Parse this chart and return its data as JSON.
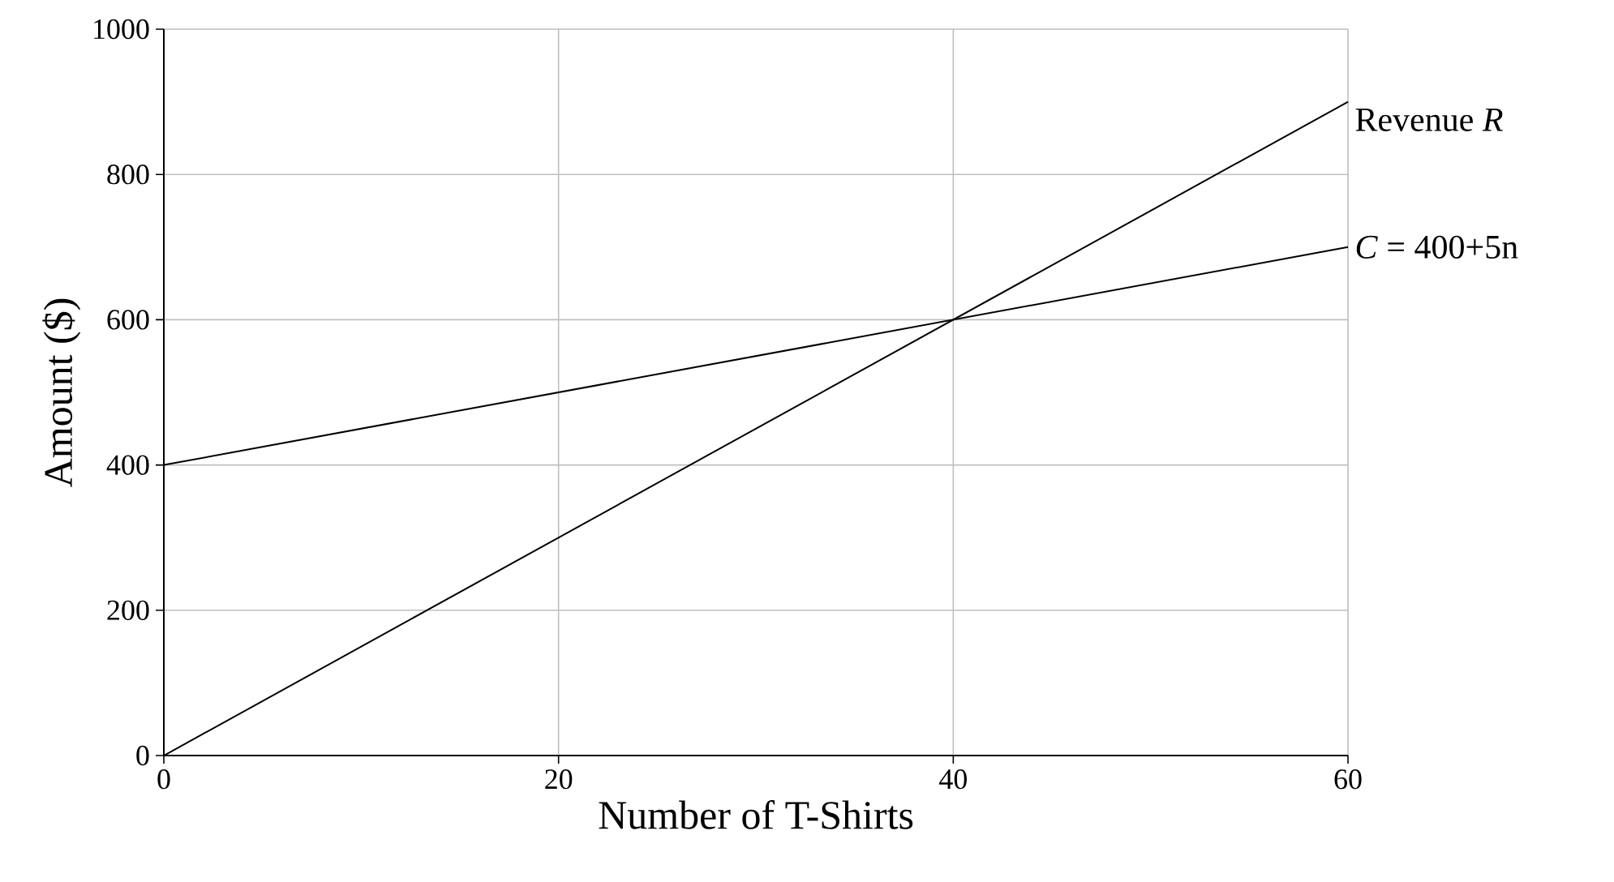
{
  "chart_data": {
    "type": "line",
    "xlabel": "Number of T-Shirts",
    "ylabel": "Amount ($)",
    "x": [
      0,
      60
    ],
    "series": [
      {
        "name": "Revenue *R*",
        "color": "#000000",
        "values": [
          0,
          900
        ]
      },
      {
        "name": "*C* = 400+5n",
        "color": "#000000",
        "values": [
          400,
          700
        ]
      }
    ],
    "xlim": [
      0,
      60
    ],
    "ylim": [
      0,
      1000
    ],
    "xticks": [
      0,
      20,
      40,
      60
    ],
    "yticks": [
      0,
      200,
      400,
      600,
      800,
      1000
    ],
    "grid": true,
    "legend": false
  }
}
